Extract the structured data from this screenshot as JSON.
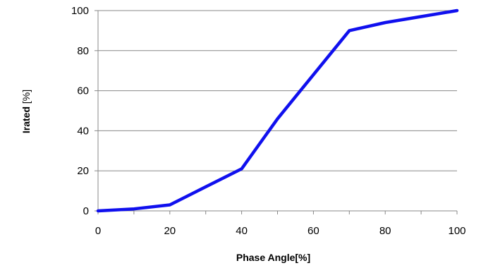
{
  "chart_data": {
    "type": "line",
    "title": "",
    "xlabel": "Phase Angle[%]",
    "ylabel_bold": "Irated",
    "ylabel_rest": " [%]",
    "xlim": [
      0,
      100
    ],
    "ylim": [
      0,
      100
    ],
    "x_ticks": [
      "0",
      "20",
      "40",
      "60",
      "80",
      "100"
    ],
    "y_ticks": [
      "0",
      "20",
      "40",
      "60",
      "80",
      "100"
    ],
    "grid": "horizontal",
    "legend": "none",
    "series": [
      {
        "color": "#1010ee",
        "x": [
          0,
          10,
          20,
          30,
          40,
          50,
          60,
          70,
          80,
          90,
          100
        ],
        "y": [
          0,
          1,
          3,
          12,
          21,
          46,
          68,
          90,
          94,
          97,
          100
        ]
      }
    ]
  }
}
